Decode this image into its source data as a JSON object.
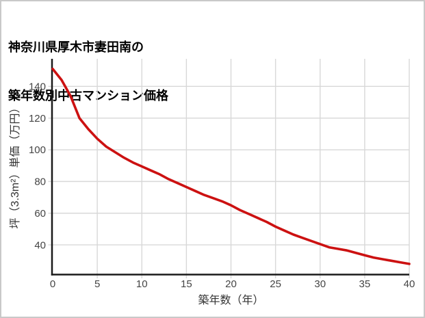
{
  "title": {
    "line1": "神奈川県厚木市妻田南の",
    "line2": "築年数別中古マンション価格"
  },
  "chart_data": {
    "type": "line",
    "title": "神奈川県厚木市妻田南の築年数別中古マンション価格",
    "xlabel": "築年数（年）",
    "ylabel": "坪（3.3m²）単価（万円）",
    "x": [
      0,
      1,
      2,
      3,
      4,
      5,
      6,
      7,
      8,
      9,
      10,
      11,
      12,
      13,
      14,
      15,
      16,
      17,
      18,
      19,
      20,
      21,
      22,
      23,
      24,
      25,
      26,
      27,
      28,
      29,
      30,
      31,
      32,
      33,
      34,
      35,
      36,
      37,
      38,
      39,
      40
    ],
    "series": [
      {
        "name": "坪単価（万円）",
        "values": [
          151,
          144,
          134,
          120,
          113,
          107,
          102,
          98.5,
          95,
          92,
          89.5,
          87,
          84.5,
          81.5,
          79,
          76.5,
          74,
          71.5,
          69.5,
          67.5,
          65,
          62,
          59.5,
          57,
          54.5,
          51.5,
          49,
          46.5,
          44.5,
          42.5,
          40.5,
          38.5,
          37.5,
          36.5,
          35,
          33.5,
          32,
          31,
          30,
          29,
          28
        ]
      }
    ],
    "x_ticks": [
      0,
      5,
      10,
      15,
      20,
      25,
      30,
      35,
      40
    ],
    "y_ticks": [
      40,
      60,
      80,
      100,
      120,
      140
    ],
    "xlim": [
      0,
      40
    ],
    "ylim": [
      21,
      157
    ],
    "grid": "on",
    "legend": "none",
    "line_color": "#cc1111",
    "line_width": 3.6,
    "grid_color": "#d8d8d8",
    "axis_color": "#1a1a1a",
    "tick_text_color": "#444444",
    "background_color": "#ffffff",
    "border_color": "#c9c9c9"
  }
}
